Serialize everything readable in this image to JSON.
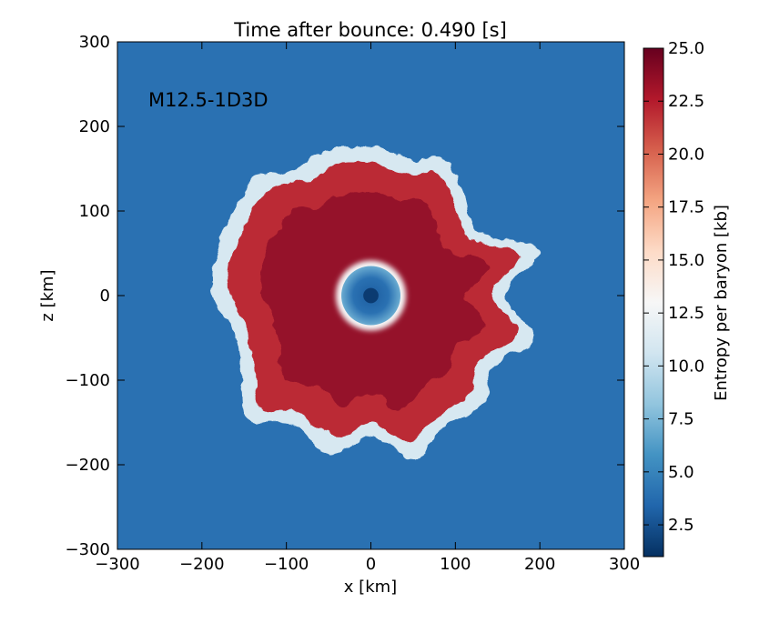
{
  "chart_data": {
    "type": "heatmap",
    "title": "Time after bounce: 0.490 [s]",
    "annotation": "M12.5-1D3D",
    "xlabel": "x [km]",
    "ylabel": "z [km]",
    "xlim": [
      -300,
      300
    ],
    "ylim": [
      -300,
      300
    ],
    "xticks": [
      -300,
      -200,
      -100,
      0,
      100,
      200,
      300
    ],
    "yticks": [
      -300,
      -200,
      -100,
      0,
      100,
      200,
      300
    ],
    "xtick_labels": [
      "−300",
      "−200",
      "−100",
      "0",
      "100",
      "200",
      "300"
    ],
    "ytick_labels": [
      "−300",
      "−200",
      "−100",
      "0",
      "100",
      "200",
      "300"
    ],
    "colorbar": {
      "label": "Entropy per baryon [kb]",
      "range": [
        1.0,
        25.0
      ],
      "ticks": [
        2.5,
        5.0,
        7.5,
        10.0,
        12.5,
        15.0,
        17.5,
        20.0,
        22.5,
        25.0
      ],
      "tick_labels": [
        "2.5",
        "5.0",
        "7.5",
        "10.0",
        "12.5",
        "15.0",
        "17.5",
        "20.0",
        "22.5",
        "25.0"
      ],
      "colormap": "RdBu_r",
      "stops": [
        "#053061",
        "#2166ac",
        "#4393c3",
        "#92c5de",
        "#d1e5f0",
        "#f7f7f7",
        "#fddbc7",
        "#f4a582",
        "#d6604d",
        "#b2182b",
        "#67001f"
      ]
    },
    "field": {
      "background_entropy": 4.0,
      "shock_radius_km": [
        175,
        168,
        182,
        160,
        150,
        205,
        160,
        200,
        168,
        185,
        178,
        198,
        168,
        195,
        178,
        205,
        178,
        168,
        185,
        190,
        190,
        195,
        175,
        180
      ],
      "shocked_region_entropy": 22,
      "shell_entropy": 11,
      "proto_neutron_star_radius_km": 35,
      "pns_surface_entropy": 7,
      "pns_core_entropy": 3,
      "core_spot_radius_km": 9,
      "core_spot_entropy": 1.5
    }
  }
}
